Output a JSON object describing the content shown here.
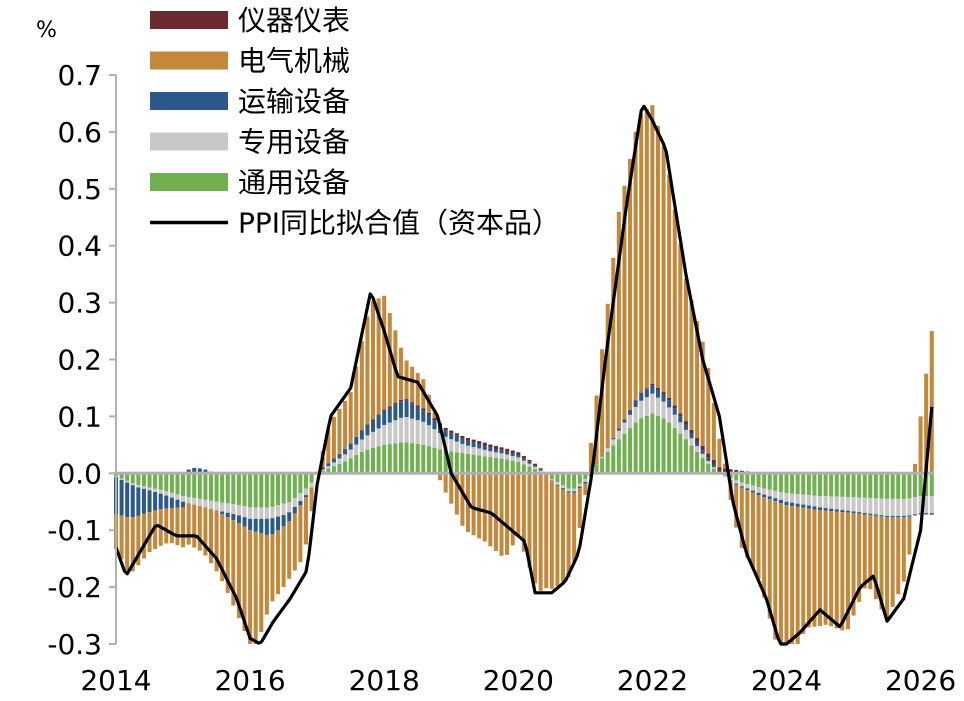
{
  "chart_data": {
    "type": "bar",
    "stacked": true,
    "unit": "%",
    "ylim": [
      -0.3,
      0.7
    ],
    "yticks": [
      "0.7",
      "0.6",
      "0.5",
      "0.4",
      "0.3",
      "0.2",
      "0.1",
      "0.0",
      "-0.1",
      "-0.2",
      "-0.3"
    ],
    "xlim": [
      2014,
      2026.2
    ],
    "xticks": [
      "2014",
      "2016",
      "2018",
      "2020",
      "2022",
      "2024",
      "2026"
    ],
    "legend_position": "top-left",
    "grid": false,
    "colors": {
      "instruments": "#6b2a2e",
      "electrical": "#c4883d",
      "transport": "#2b5a8a",
      "special": "#c8c8c8",
      "general": "#70b050",
      "ppi": "#000000"
    },
    "legend": [
      {
        "key": "instruments",
        "label": "仪器仪表",
        "kind": "bar"
      },
      {
        "key": "electrical",
        "label": "电气机械",
        "kind": "bar"
      },
      {
        "key": "transport",
        "label": "运输设备",
        "kind": "bar"
      },
      {
        "key": "special",
        "label": "专用设备",
        "kind": "bar"
      },
      {
        "key": "general",
        "label": "通用设备",
        "kind": "bar"
      },
      {
        "key": "ppi",
        "label": "PPI同比拟合值（资本品）",
        "kind": "line"
      }
    ],
    "series_keyframes": {
      "general": [
        [
          2014.0,
          -0.005
        ],
        [
          2014.3,
          -0.02
        ],
        [
          2014.7,
          -0.03
        ],
        [
          2015.0,
          -0.04
        ],
        [
          2015.5,
          -0.05
        ],
        [
          2015.8,
          -0.055
        ],
        [
          2016.0,
          -0.06
        ],
        [
          2016.3,
          -0.06
        ],
        [
          2016.6,
          -0.05
        ],
        [
          2016.9,
          -0.02
        ],
        [
          2017.0,
          0.0
        ],
        [
          2017.2,
          0.01
        ],
        [
          2017.4,
          0.02
        ],
        [
          2017.7,
          0.04
        ],
        [
          2018.0,
          0.05
        ],
        [
          2018.3,
          0.055
        ],
        [
          2018.6,
          0.05
        ],
        [
          2018.9,
          0.04
        ],
        [
          2019.2,
          0.035
        ],
        [
          2019.5,
          0.03
        ],
        [
          2019.8,
          0.025
        ],
        [
          2020.0,
          0.02
        ],
        [
          2020.3,
          0.005
        ],
        [
          2020.5,
          -0.01
        ],
        [
          2020.8,
          -0.03
        ],
        [
          2021.0,
          -0.01
        ],
        [
          2021.2,
          0.02
        ],
        [
          2021.5,
          0.06
        ],
        [
          2021.8,
          0.095
        ],
        [
          2022.0,
          0.105
        ],
        [
          2022.2,
          0.095
        ],
        [
          2022.5,
          0.06
        ],
        [
          2022.8,
          0.02
        ],
        [
          2023.0,
          0.0
        ],
        [
          2023.3,
          -0.015
        ],
        [
          2023.6,
          -0.025
        ],
        [
          2024.0,
          -0.035
        ],
        [
          2024.5,
          -0.04
        ],
        [
          2025.0,
          -0.042
        ],
        [
          2025.5,
          -0.045
        ],
        [
          2025.8,
          -0.045
        ],
        [
          2026.0,
          -0.04
        ],
        [
          2026.2,
          -0.04
        ]
      ],
      "special": [
        [
          2014.0,
          -0.002
        ],
        [
          2014.5,
          -0.005
        ],
        [
          2015.0,
          -0.01
        ],
        [
          2015.5,
          -0.015
        ],
        [
          2016.0,
          -0.02
        ],
        [
          2016.5,
          -0.02
        ],
        [
          2016.9,
          -0.01
        ],
        [
          2017.0,
          0.0
        ],
        [
          2017.2,
          0.005
        ],
        [
          2017.5,
          0.015
        ],
        [
          2018.0,
          0.035
        ],
        [
          2018.3,
          0.045
        ],
        [
          2018.6,
          0.04
        ],
        [
          2018.9,
          0.025
        ],
        [
          2019.2,
          0.015
        ],
        [
          2019.6,
          0.01
        ],
        [
          2020.0,
          0.008
        ],
        [
          2020.3,
          0.003
        ],
        [
          2020.6,
          -0.005
        ],
        [
          2021.0,
          -0.005
        ],
        [
          2021.2,
          0.0
        ],
        [
          2021.5,
          0.015
        ],
        [
          2021.8,
          0.03
        ],
        [
          2022.0,
          0.035
        ],
        [
          2022.3,
          0.025
        ],
        [
          2022.6,
          0.012
        ],
        [
          2022.9,
          0.003
        ],
        [
          2023.2,
          -0.005
        ],
        [
          2023.6,
          -0.01
        ],
        [
          2024.0,
          -0.015
        ],
        [
          2024.5,
          -0.02
        ],
        [
          2025.0,
          -0.025
        ],
        [
          2025.5,
          -0.03
        ],
        [
          2025.8,
          -0.03
        ],
        [
          2026.0,
          -0.03
        ],
        [
          2026.2,
          -0.03
        ]
      ],
      "transport": [
        [
          2014.0,
          -0.065
        ],
        [
          2014.2,
          -0.06
        ],
        [
          2014.4,
          -0.045
        ],
        [
          2014.7,
          -0.025
        ],
        [
          2015.0,
          -0.01
        ],
        [
          2015.1,
          0.01
        ],
        [
          2015.3,
          0.008
        ],
        [
          2015.6,
          -0.005
        ],
        [
          2016.0,
          -0.02
        ],
        [
          2016.3,
          -0.03
        ],
        [
          2016.6,
          -0.015
        ],
        [
          2016.9,
          0.0
        ],
        [
          2017.2,
          0.005
        ],
        [
          2017.5,
          0.01
        ],
        [
          2018.0,
          0.025
        ],
        [
          2018.3,
          0.03
        ],
        [
          2018.6,
          0.02
        ],
        [
          2018.9,
          0.012
        ],
        [
          2019.3,
          0.008
        ],
        [
          2019.6,
          0.006
        ],
        [
          2020.0,
          0.005
        ],
        [
          2020.3,
          0.002
        ],
        [
          2020.6,
          -0.002
        ],
        [
          2021.0,
          -0.003
        ],
        [
          2021.3,
          0.0
        ],
        [
          2021.6,
          0.005
        ],
        [
          2021.8,
          0.012
        ],
        [
          2022.0,
          0.015
        ],
        [
          2022.3,
          0.012
        ],
        [
          2022.6,
          0.008
        ],
        [
          2022.9,
          0.005
        ],
        [
          2023.2,
          -0.002
        ],
        [
          2023.6,
          -0.004
        ],
        [
          2024.0,
          -0.006
        ],
        [
          2024.5,
          -0.005
        ],
        [
          2025.0,
          -0.003
        ],
        [
          2025.5,
          -0.002
        ],
        [
          2025.8,
          -0.002
        ],
        [
          2026.0,
          -0.002
        ],
        [
          2026.2,
          -0.003
        ]
      ],
      "instruments": [
        [
          2014.0,
          0.0
        ],
        [
          2017.5,
          0.001
        ],
        [
          2018.0,
          0.002
        ],
        [
          2018.5,
          0.003
        ],
        [
          2019.0,
          0.004
        ],
        [
          2019.5,
          0.006
        ],
        [
          2020.0,
          0.004
        ],
        [
          2021.0,
          0.0
        ],
        [
          2022.0,
          0.002
        ],
        [
          2022.5,
          0.006
        ],
        [
          2022.9,
          0.008
        ],
        [
          2023.1,
          0.008
        ],
        [
          2023.5,
          0.002
        ],
        [
          2024.0,
          0.0
        ],
        [
          2026.2,
          0.0
        ]
      ],
      "electrical": [
        [
          2014.0,
          -0.06
        ],
        [
          2014.2,
          -0.1
        ],
        [
          2014.5,
          -0.07
        ],
        [
          2014.8,
          -0.06
        ],
        [
          2015.0,
          -0.07
        ],
        [
          2015.3,
          -0.08
        ],
        [
          2015.6,
          -0.12
        ],
        [
          2015.9,
          -0.18
        ],
        [
          2016.0,
          -0.2
        ],
        [
          2016.1,
          -0.2
        ],
        [
          2016.3,
          -0.12
        ],
        [
          2016.6,
          -0.1
        ],
        [
          2016.8,
          -0.1
        ],
        [
          2016.9,
          -0.05
        ],
        [
          2017.0,
          0.0
        ],
        [
          2017.2,
          0.07
        ],
        [
          2017.5,
          0.09
        ],
        [
          2017.8,
          0.21
        ],
        [
          2018.0,
          0.2
        ],
        [
          2018.3,
          0.07
        ],
        [
          2018.6,
          0.05
        ],
        [
          2018.9,
          -0.03
        ],
        [
          2019.2,
          -0.1
        ],
        [
          2019.5,
          -0.12
        ],
        [
          2019.8,
          -0.15
        ],
        [
          2020.0,
          -0.11
        ],
        [
          2020.3,
          -0.21
        ],
        [
          2020.5,
          -0.19
        ],
        [
          2020.8,
          -0.14
        ],
        [
          2021.0,
          -0.02
        ],
        [
          2021.2,
          0.15
        ],
        [
          2021.5,
          0.38
        ],
        [
          2021.8,
          0.49
        ],
        [
          2022.0,
          0.49
        ],
        [
          2022.2,
          0.42
        ],
        [
          2022.5,
          0.25
        ],
        [
          2022.8,
          0.17
        ],
        [
          2023.0,
          0.05
        ],
        [
          2023.3,
          -0.1
        ],
        [
          2023.6,
          -0.15
        ],
        [
          2023.9,
          -0.27
        ],
        [
          2024.0,
          -0.28
        ],
        [
          2024.3,
          -0.21
        ],
        [
          2024.6,
          -0.2
        ],
        [
          2024.9,
          -0.21
        ],
        [
          2025.2,
          -0.12
        ],
        [
          2025.5,
          -0.18
        ],
        [
          2025.8,
          -0.1
        ],
        [
          2026.0,
          0.1
        ],
        [
          2026.2,
          0.28
        ]
      ],
      "ppi": [
        [
          2014.0,
          -0.13
        ],
        [
          2014.15,
          -0.18
        ],
        [
          2014.3,
          -0.15
        ],
        [
          2014.6,
          -0.09
        ],
        [
          2014.9,
          -0.11
        ],
        [
          2015.2,
          -0.11
        ],
        [
          2015.5,
          -0.15
        ],
        [
          2015.8,
          -0.22
        ],
        [
          2016.0,
          -0.29
        ],
        [
          2016.15,
          -0.3
        ],
        [
          2016.35,
          -0.26
        ],
        [
          2016.6,
          -0.22
        ],
        [
          2016.85,
          -0.17
        ],
        [
          2017.0,
          -0.02
        ],
        [
          2017.2,
          0.1
        ],
        [
          2017.5,
          0.15
        ],
        [
          2017.8,
          0.32
        ],
        [
          2018.0,
          0.25
        ],
        [
          2018.2,
          0.17
        ],
        [
          2018.5,
          0.16
        ],
        [
          2018.8,
          0.1
        ],
        [
          2019.0,
          0.0
        ],
        [
          2019.3,
          -0.06
        ],
        [
          2019.6,
          -0.07
        ],
        [
          2019.9,
          -0.1
        ],
        [
          2020.1,
          -0.12
        ],
        [
          2020.25,
          -0.21
        ],
        [
          2020.5,
          -0.21
        ],
        [
          2020.7,
          -0.19
        ],
        [
          2020.9,
          -0.14
        ],
        [
          2021.1,
          0.0
        ],
        [
          2021.3,
          0.2
        ],
        [
          2021.6,
          0.46
        ],
        [
          2021.85,
          0.65
        ],
        [
          2022.0,
          0.62
        ],
        [
          2022.2,
          0.57
        ],
        [
          2022.5,
          0.35
        ],
        [
          2022.75,
          0.2
        ],
        [
          2023.0,
          0.1
        ],
        [
          2023.2,
          -0.05
        ],
        [
          2023.4,
          -0.14
        ],
        [
          2023.7,
          -0.22
        ],
        [
          2023.9,
          -0.3
        ],
        [
          2024.0,
          -0.3
        ],
        [
          2024.2,
          -0.28
        ],
        [
          2024.5,
          -0.24
        ],
        [
          2024.8,
          -0.27
        ],
        [
          2025.1,
          -0.2
        ],
        [
          2025.3,
          -0.18
        ],
        [
          2025.5,
          -0.26
        ],
        [
          2025.75,
          -0.22
        ],
        [
          2026.0,
          -0.1
        ],
        [
          2026.2,
          0.16
        ]
      ]
    }
  }
}
